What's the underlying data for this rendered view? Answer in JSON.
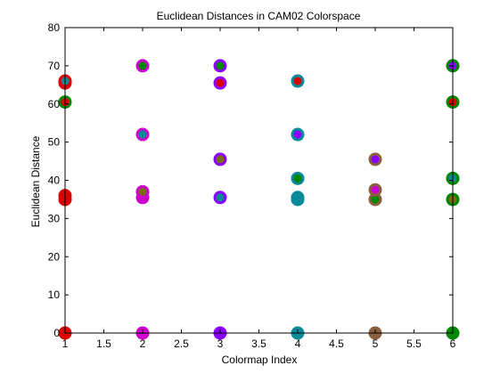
{
  "chart_data": {
    "type": "scatter",
    "title": "Euclidean Distances in CAM02 Colorspace",
    "xlabel": "Colormap Index",
    "ylabel": "Euclidean Distance",
    "xlim": [
      1,
      6
    ],
    "ylim": [
      0,
      80
    ],
    "x_ticks": [
      "1",
      "1.5",
      "2",
      "2.5",
      "3",
      "3.5",
      "4",
      "4.5",
      "5",
      "5.5",
      "6"
    ],
    "y_ticks": [
      "0",
      "10",
      "20",
      "30",
      "40",
      "50",
      "60",
      "70",
      "80"
    ],
    "grid": false,
    "colors": {
      "red": "#dd0000",
      "teal": "#0a8a99",
      "magenta": "#cc00cc",
      "violet": "#8a00ff",
      "green": "#008800",
      "brown": "#8a6040",
      "purple": "#7030a0",
      "olive": "#7a6a10"
    },
    "points": [
      {
        "x": 1,
        "y": 0,
        "outer": "red",
        "inner": "red"
      },
      {
        "x": 1,
        "y": 35,
        "outer": "red",
        "inner": "red"
      },
      {
        "x": 1,
        "y": 36,
        "outer": "red",
        "inner": "red"
      },
      {
        "x": 1,
        "y": 60.5,
        "outer": "green",
        "inner": "red"
      },
      {
        "x": 1,
        "y": 65.5,
        "outer": "red",
        "inner": "red"
      },
      {
        "x": 1,
        "y": 66,
        "outer": "red",
        "inner": "teal"
      },
      {
        "x": 2,
        "y": 0,
        "outer": "magenta",
        "inner": "magenta"
      },
      {
        "x": 2,
        "y": 35.5,
        "outer": "magenta",
        "inner": "magenta"
      },
      {
        "x": 2,
        "y": 37,
        "outer": "magenta",
        "inner": "olive"
      },
      {
        "x": 2,
        "y": 52,
        "outer": "magenta",
        "inner": "teal"
      },
      {
        "x": 2,
        "y": 70,
        "outer": "magenta",
        "inner": "green"
      },
      {
        "x": 3,
        "y": 0,
        "outer": "violet",
        "inner": "violet"
      },
      {
        "x": 3,
        "y": 35.5,
        "outer": "violet",
        "inner": "teal"
      },
      {
        "x": 3,
        "y": 45.5,
        "outer": "violet",
        "inner": "olive"
      },
      {
        "x": 3,
        "y": 65.5,
        "outer": "violet",
        "inner": "red"
      },
      {
        "x": 3,
        "y": 70,
        "outer": "violet",
        "inner": "green"
      },
      {
        "x": 4,
        "y": 0,
        "outer": "teal",
        "inner": "teal"
      },
      {
        "x": 4,
        "y": 35,
        "outer": "teal",
        "inner": "olive"
      },
      {
        "x": 4,
        "y": 35.5,
        "outer": "teal",
        "inner": "teal"
      },
      {
        "x": 4,
        "y": 40.5,
        "outer": "teal",
        "inner": "green"
      },
      {
        "x": 4,
        "y": 52,
        "outer": "teal",
        "inner": "violet"
      },
      {
        "x": 4,
        "y": 66,
        "outer": "teal",
        "inner": "red"
      },
      {
        "x": 5,
        "y": 0,
        "outer": "brown",
        "inner": "brown"
      },
      {
        "x": 5,
        "y": 35,
        "outer": "brown",
        "inner": "green"
      },
      {
        "x": 5,
        "y": 37.5,
        "outer": "brown",
        "inner": "magenta"
      },
      {
        "x": 5,
        "y": 45.5,
        "outer": "brown",
        "inner": "violet"
      },
      {
        "x": 6,
        "y": 0,
        "outer": "green",
        "inner": "green"
      },
      {
        "x": 6,
        "y": 35,
        "outer": "green",
        "inner": "olive"
      },
      {
        "x": 6,
        "y": 40.5,
        "outer": "green",
        "inner": "teal"
      },
      {
        "x": 6,
        "y": 60.5,
        "outer": "green",
        "inner": "red"
      },
      {
        "x": 6,
        "y": 70,
        "outer": "green",
        "inner": "violet"
      }
    ]
  }
}
